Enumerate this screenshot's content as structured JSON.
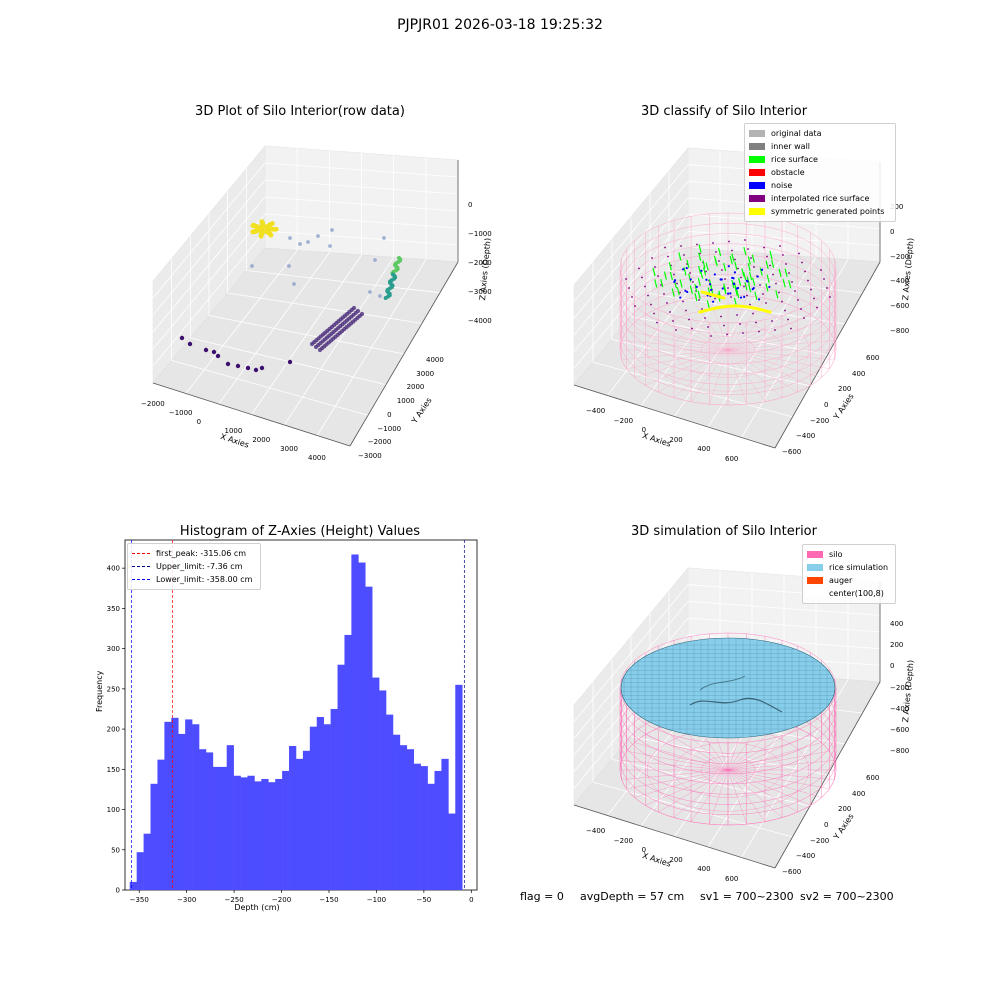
{
  "suptitle": "PJPJR01 2026-03-18 19:25:32",
  "footer": {
    "flag": "flag = 0",
    "avg_depth": "avgDepth = 57 cm",
    "sv1": "sv1 = 700~2300",
    "sv2": "sv2 = 700~2300"
  },
  "panels": {
    "raw": {
      "title": "3D Plot of Silo Interior(row data)",
      "xlabel": "X Axies",
      "ylabel": "Y Axies",
      "zlabel": "Z Axies (Depth)",
      "xticks": [
        "−2000",
        "−1000",
        "0",
        "1000",
        "2000",
        "3000",
        "4000"
      ],
      "yticks": [
        "−3000",
        "−2000",
        "−1000",
        "0",
        "1000",
        "2000",
        "3000",
        "4000"
      ],
      "zticks": [
        "0",
        "−1000",
        "−2000",
        "−3000",
        "−4000"
      ]
    },
    "classify": {
      "title": "3D classify of Silo Interior",
      "xlabel": "X Axies",
      "ylabel": "Y Axies",
      "zlabel": "Z Axies (Depth)",
      "xticks": [
        "−400",
        "−200",
        "0",
        "200",
        "400",
        "600"
      ],
      "yticks": [
        "−600",
        "−400",
        "−200",
        "0",
        "200",
        "400",
        "600"
      ],
      "zticks": [
        "200",
        "0",
        "−200",
        "−400",
        "−600",
        "−800"
      ],
      "legend": [
        {
          "label": "original data",
          "color": "#b3b3b3"
        },
        {
          "label": "inner wall",
          "color": "#808080"
        },
        {
          "label": "rice surface",
          "color": "#00ff00"
        },
        {
          "label": "obstacle",
          "color": "#ff0000"
        },
        {
          "label": "noise",
          "color": "#0000ff"
        },
        {
          "label": "interpolated rice surface",
          "color": "#800080"
        },
        {
          "label": "symmetric generated points",
          "color": "#ffff00"
        }
      ]
    },
    "histogram": {
      "title": "Histogram of Z-Axies (Height) Values",
      "xlabel": "Depth (cm)",
      "ylabel": "Frequency",
      "legend": [
        {
          "label": "first_peak: -315.06 cm",
          "color": "#ff0000"
        },
        {
          "label": "Upper_limit: -7.36 cm",
          "color": "#000080"
        },
        {
          "label": "Lower_limit: -358.00 cm",
          "color": "#0000ff"
        }
      ]
    },
    "simulation": {
      "title": "3D simulation of Silo Interior",
      "xlabel": "X Axies",
      "ylabel": "Y Axies",
      "zlabel": "Z Axies (Depth)",
      "xticks": [
        "−400",
        "−200",
        "0",
        "200",
        "400",
        "600"
      ],
      "yticks": [
        "−600",
        "−400",
        "−200",
        "0",
        "200",
        "400",
        "600"
      ],
      "zticks": [
        "400",
        "200",
        "0",
        "−200",
        "−400",
        "−600",
        "−800"
      ],
      "legend": [
        {
          "label": "silo",
          "color": "#ff69b4"
        },
        {
          "label": "rice simulation",
          "color": "#87ceeb"
        },
        {
          "label": "auger",
          "color": "#ff4500"
        },
        {
          "label": "center(100,8)",
          "color": "#ffffff"
        }
      ]
    }
  },
  "chart_data": [
    {
      "type": "scatter",
      "title": "3D Plot of Silo Interior(row data)",
      "xlabel": "X Axies",
      "ylabel": "Y Axies",
      "zlabel": "Z Axies (Depth)",
      "xlim": [
        -2000,
        4000
      ],
      "ylim": [
        -3000,
        4000
      ],
      "zlim": [
        -4500,
        0
      ]
    },
    {
      "type": "scatter",
      "title": "3D classify of Silo Interior",
      "xlabel": "X Axies",
      "ylabel": "Y Axies",
      "zlabel": "Z Axies (Depth)",
      "xlim": [
        -500,
        700
      ],
      "ylim": [
        -600,
        600
      ],
      "zlim": [
        -800,
        200
      ],
      "series": [
        {
          "name": "original data"
        },
        {
          "name": "inner wall"
        },
        {
          "name": "rice surface"
        },
        {
          "name": "obstacle"
        },
        {
          "name": "noise"
        },
        {
          "name": "interpolated rice surface"
        },
        {
          "name": "symmetric generated points"
        }
      ]
    },
    {
      "type": "bar",
      "title": "Histogram of Z-Axies (Height) Values",
      "xlabel": "Depth (cm)",
      "ylabel": "Frequency",
      "xlim": [
        -365,
        6
      ],
      "ylim": [
        0,
        435
      ],
      "xticks": [
        -350,
        -300,
        -250,
        -200,
        -150,
        -100,
        -50,
        0
      ],
      "yticks": [
        0,
        50,
        100,
        150,
        200,
        250,
        300,
        350,
        400
      ],
      "bin_width": 7.3,
      "bin_start": -360,
      "values": [
        10,
        47,
        70,
        132,
        162,
        209,
        214,
        194,
        212,
        206,
        175,
        171,
        153,
        153,
        180,
        142,
        140,
        142,
        135,
        138,
        134,
        138,
        148,
        179,
        163,
        173,
        203,
        215,
        206,
        225,
        280,
        317,
        417,
        407,
        377,
        264,
        248,
        218,
        193,
        180,
        175,
        157,
        154,
        132,
        148,
        163,
        95,
        255
      ],
      "lines": [
        {
          "name": "first_peak",
          "x": -315.06,
          "color": "#ff0000"
        },
        {
          "name": "Upper_limit",
          "x": -7.36,
          "color": "#000080"
        },
        {
          "name": "Lower_limit",
          "x": -358.0,
          "color": "#0000ff"
        }
      ],
      "grid": false,
      "legend": "top-left"
    },
    {
      "type": "area",
      "title": "3D simulation of Silo Interior",
      "xlabel": "X Axies",
      "ylabel": "Y Axies",
      "zlabel": "Z Axies (Depth)",
      "xlim": [
        -500,
        700
      ],
      "ylim": [
        -600,
        600
      ],
      "zlim": [
        -800,
        400
      ],
      "series": [
        {
          "name": "silo"
        },
        {
          "name": "rice simulation"
        },
        {
          "name": "auger"
        },
        {
          "name": "center(100,8)"
        }
      ]
    }
  ]
}
